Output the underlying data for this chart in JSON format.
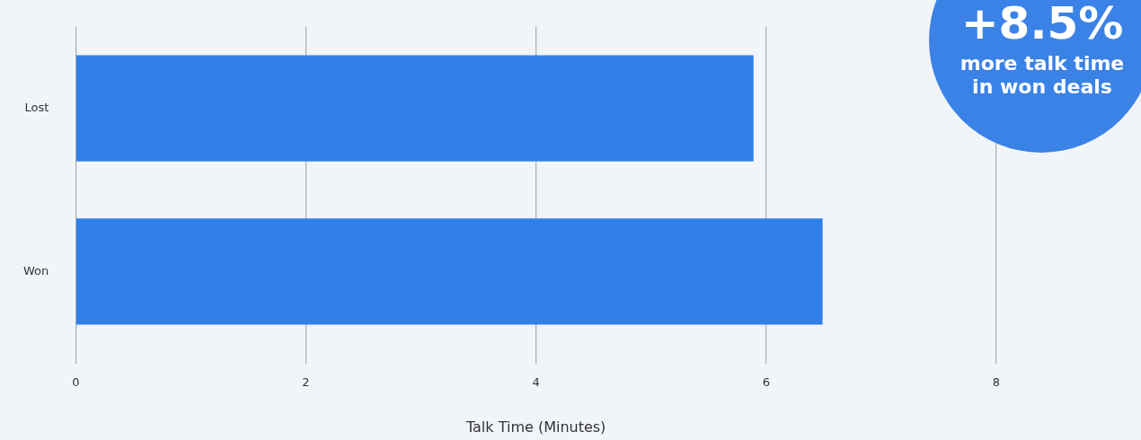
{
  "chart_data": {
    "type": "bar",
    "orientation": "horizontal",
    "categories": [
      "Lost",
      "Won"
    ],
    "values": [
      5.89,
      6.49
    ],
    "color": "#3080e8",
    "xlabel": "Talk Time (Minutes)",
    "xlim": [
      0,
      8
    ],
    "xticks": [
      0,
      2,
      4,
      6,
      8
    ],
    "grid": "x",
    "annotations": [
      "+8.5%",
      "more talk time in won deals"
    ]
  }
}
